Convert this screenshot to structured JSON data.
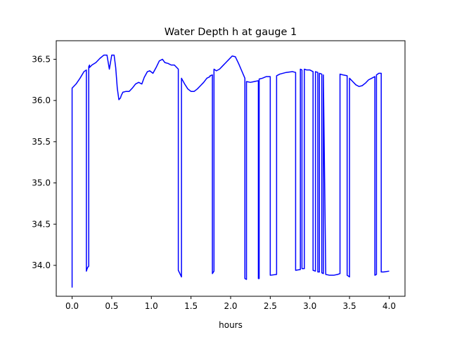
{
  "chart_data": {
    "type": "line",
    "title": "Water Depth h at gauge 1",
    "xlabel": "hours",
    "ylabel": "",
    "xlim": [
      -0.2,
      4.2
    ],
    "ylim": [
      33.625,
      36.725
    ],
    "xticks": [
      0.0,
      0.5,
      1.0,
      1.5,
      2.0,
      2.5,
      3.0,
      3.5,
      4.0
    ],
    "xtick_labels": [
      "0.0",
      "0.5",
      "1.0",
      "1.5",
      "2.0",
      "2.5",
      "3.0",
      "3.5",
      "4.0"
    ],
    "yticks": [
      34.0,
      34.5,
      35.0,
      35.5,
      36.0,
      36.5
    ],
    "ytick_labels": [
      "34.0",
      "34.5",
      "35.0",
      "35.5",
      "36.0",
      "36.5"
    ],
    "grid": false,
    "series": [
      {
        "color": "#0000ff",
        "x": [
          0.0,
          0.0,
          0.05,
          0.1,
          0.15,
          0.18,
          0.18,
          0.19,
          0.2,
          0.21,
          0.21,
          0.22,
          0.22,
          0.25,
          0.3,
          0.35,
          0.4,
          0.44,
          0.47,
          0.5,
          0.53,
          0.55,
          0.57,
          0.59,
          0.61,
          0.62,
          0.64,
          0.68,
          0.72,
          0.76,
          0.8,
          0.84,
          0.88,
          0.91,
          0.95,
          0.98,
          1.02,
          1.06,
          1.1,
          1.14,
          1.17,
          1.21,
          1.25,
          1.29,
          1.32,
          1.34,
          1.34,
          1.38,
          1.38,
          1.42,
          1.46,
          1.5,
          1.54,
          1.58,
          1.62,
          1.66,
          1.7,
          1.74,
          1.74,
          1.77,
          1.77,
          1.79,
          1.79,
          1.82,
          1.86,
          1.9,
          1.94,
          1.98,
          2.02,
          2.06,
          2.1,
          2.14,
          2.18,
          2.18,
          2.2,
          2.2,
          2.25,
          2.3,
          2.35,
          2.35,
          2.36,
          2.36,
          2.4,
          2.45,
          2.5,
          2.5,
          2.58,
          2.58,
          2.62,
          2.7,
          2.78,
          2.82,
          2.82,
          2.88,
          2.88,
          2.9,
          2.9,
          2.93,
          2.93,
          2.96,
          3.0,
          3.04,
          3.04,
          3.07,
          3.07,
          3.1,
          3.1,
          3.12,
          3.12,
          3.15,
          3.15,
          3.17,
          3.17,
          3.2,
          3.2,
          3.25,
          3.3,
          3.35,
          3.38,
          3.38,
          3.42,
          3.47,
          3.47,
          3.5,
          3.5,
          3.54,
          3.58,
          3.62,
          3.66,
          3.7,
          3.74,
          3.78,
          3.82,
          3.82,
          3.84,
          3.84,
          3.87,
          3.9,
          3.9,
          3.93,
          4.0
        ],
        "y": [
          33.73,
          36.15,
          36.2,
          36.27,
          36.35,
          36.37,
          33.93,
          33.96,
          33.98,
          33.99,
          36.41,
          36.43,
          36.4,
          36.43,
          36.46,
          36.51,
          36.55,
          36.55,
          36.38,
          36.55,
          36.55,
          36.4,
          36.15,
          36.01,
          36.03,
          36.06,
          36.1,
          36.11,
          36.11,
          36.15,
          36.2,
          36.22,
          36.2,
          36.28,
          36.35,
          36.36,
          36.33,
          36.4,
          36.48,
          36.5,
          36.46,
          36.45,
          36.43,
          36.43,
          36.4,
          36.38,
          33.94,
          33.86,
          36.27,
          36.2,
          36.14,
          36.11,
          36.11,
          36.14,
          36.18,
          36.22,
          36.27,
          36.29,
          36.3,
          36.31,
          33.9,
          33.93,
          36.38,
          36.36,
          36.38,
          36.42,
          36.46,
          36.5,
          36.54,
          36.53,
          36.45,
          36.36,
          36.27,
          33.84,
          33.83,
          36.23,
          36.22,
          36.23,
          36.24,
          33.84,
          33.84,
          36.26,
          36.27,
          36.29,
          36.29,
          33.88,
          33.89,
          36.3,
          36.32,
          36.34,
          36.35,
          36.34,
          33.94,
          33.95,
          36.38,
          36.37,
          33.96,
          33.96,
          36.38,
          36.37,
          36.37,
          36.35,
          33.94,
          33.93,
          36.35,
          36.34,
          33.92,
          33.92,
          36.33,
          36.32,
          33.91,
          33.9,
          36.31,
          33.9,
          33.89,
          33.88,
          33.88,
          33.89,
          33.9,
          36.32,
          36.31,
          36.3,
          33.88,
          33.86,
          36.27,
          36.23,
          36.19,
          36.17,
          36.18,
          36.21,
          36.25,
          36.27,
          36.29,
          33.88,
          33.89,
          36.31,
          36.33,
          36.33,
          33.92,
          33.92,
          33.93
        ]
      }
    ]
  }
}
